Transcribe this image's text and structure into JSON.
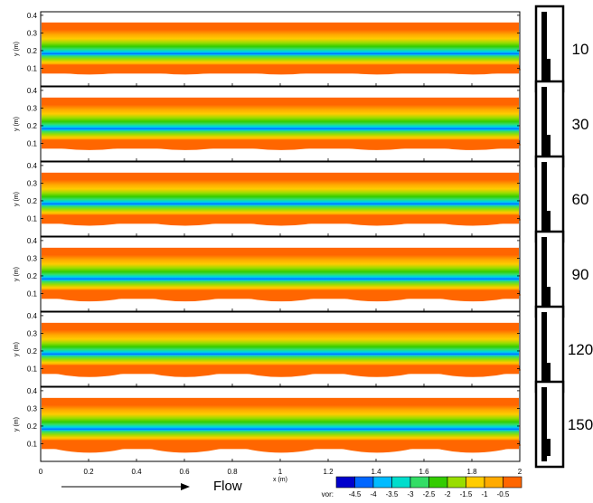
{
  "chart_data": {
    "type": "heatmap",
    "description_kind": "vorticity contour panels",
    "panels": [
      {
        "side_label": "10"
      },
      {
        "side_label": "30"
      },
      {
        "side_label": "60"
      },
      {
        "side_label": "90"
      },
      {
        "side_label": "120"
      },
      {
        "side_label": "150"
      }
    ],
    "y_ticks": [
      "0.1",
      "0.2",
      "0.3",
      "0.4"
    ],
    "y_tick_values": [
      0.1,
      0.2,
      0.3,
      0.4
    ],
    "ylabel": "y (m)",
    "ylim": [
      0.0,
      0.42
    ],
    "x_ticks": [
      "0",
      "0.2",
      "0.4",
      "0.6",
      "0.8",
      "1",
      "1.2",
      "1.4",
      "1.6",
      "1.8",
      "2"
    ],
    "x_tick_values": [
      0,
      0.2,
      0.4,
      0.6,
      0.8,
      1.0,
      1.2,
      1.4,
      1.6,
      1.8,
      2.0
    ],
    "xlabel": "x (m)",
    "xlim": [
      0,
      2
    ],
    "colorbar": {
      "title": "vor:",
      "levels": [
        "-4.5",
        "-4",
        "-3.5",
        "-3",
        "-2.5",
        "-2",
        "-1.5",
        "-1",
        "-0.5"
      ],
      "level_values": [
        -4.5,
        -4,
        -3.5,
        -3,
        -2.5,
        -2,
        -1.5,
        -1,
        -0.5
      ],
      "colors": [
        "#0000cc",
        "#0066ff",
        "#00bbff",
        "#00ddcc",
        "#33dd66",
        "#33cc00",
        "#99dd00",
        "#ffcc00",
        "#ffaa00",
        "#ff6600"
      ]
    },
    "flow_label": "Flow"
  }
}
